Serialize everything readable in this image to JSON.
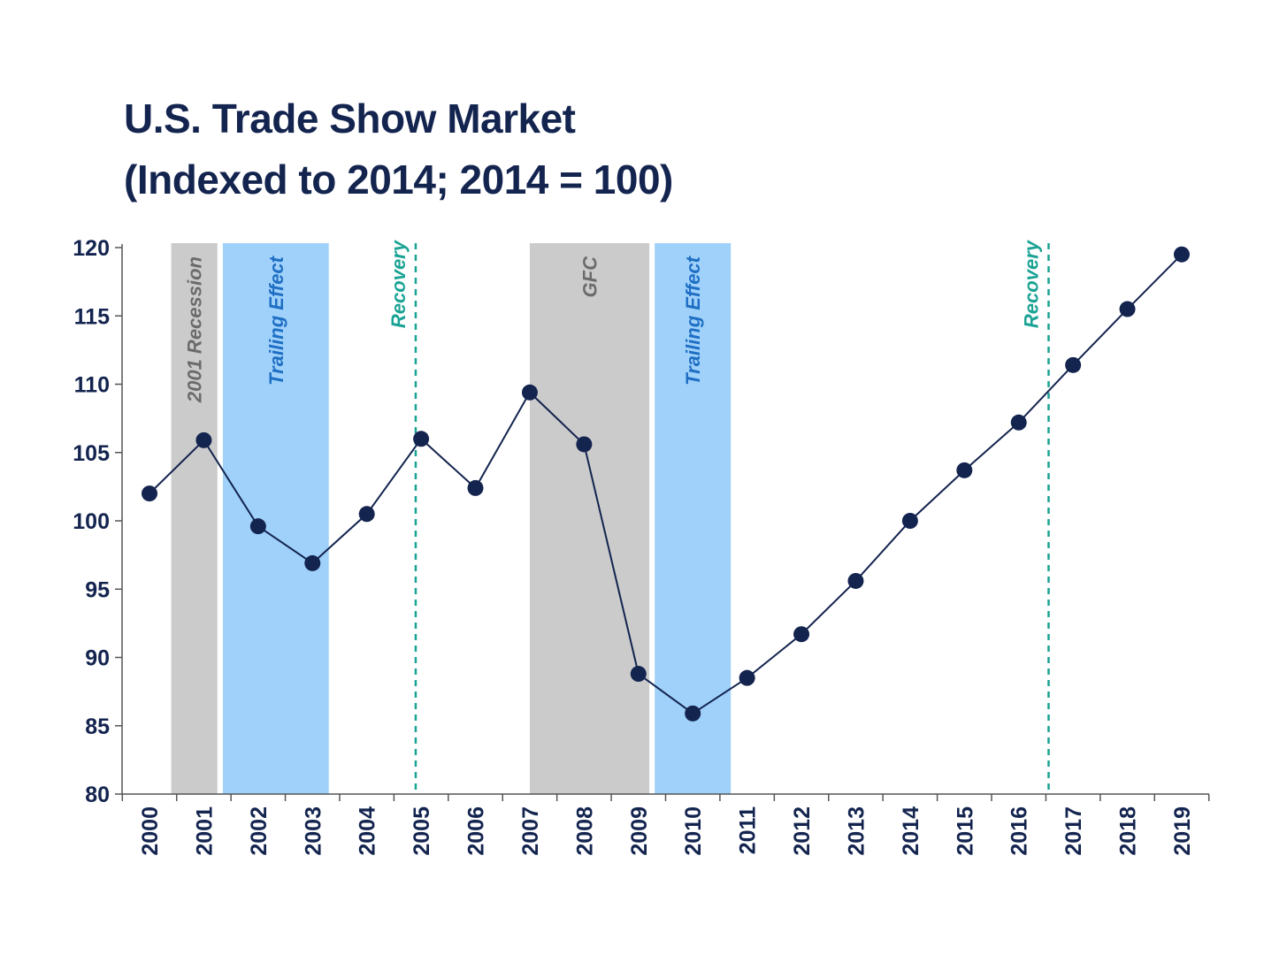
{
  "colors": {
    "title": "#13244f",
    "line": "#13244f",
    "axis": "#555555",
    "recession_band": "#cbcbcb",
    "recession_label": "#6b6b6b",
    "trailing_band": "#9fd1fa",
    "trailing_label": "#1f6fc4",
    "recovery": "#1aa394"
  },
  "chart_data": {
    "type": "line",
    "title": "U.S. Trade Show Market",
    "subtitle": "(Indexed to 2014; 2014 = 100)",
    "xlabel": "",
    "ylabel": "",
    "ylim": [
      80,
      120
    ],
    "yticks": [
      80,
      85,
      90,
      95,
      100,
      105,
      110,
      115,
      120
    ],
    "categories": [
      "2000",
      "2001",
      "2002",
      "2003",
      "2004",
      "2005",
      "2006",
      "2007",
      "2008",
      "2009",
      "2010",
      "2011",
      "2012",
      "2013",
      "2014",
      "2015",
      "2016",
      "2017",
      "2018",
      "2019"
    ],
    "values": [
      102.0,
      105.9,
      99.6,
      96.9,
      100.5,
      106.0,
      102.4,
      109.4,
      105.6,
      88.8,
      85.9,
      88.5,
      91.7,
      95.6,
      100.0,
      103.7,
      107.2,
      111.4,
      115.5,
      119.5
    ],
    "grid": false,
    "legend": "none",
    "bands": [
      {
        "label": "2001 Recession",
        "kind": "recession",
        "from": 2000.4,
        "to": 2001.25
      },
      {
        "label": "Trailing Effect",
        "kind": "trailing",
        "from": 2001.35,
        "to": 2003.3
      },
      {
        "label": "GFC",
        "kind": "recession",
        "from": 2007.0,
        "to": 2009.2
      },
      {
        "label": "Trailing Effect",
        "kind": "trailing",
        "from": 2009.3,
        "to": 2010.7
      }
    ],
    "markers": [
      {
        "label": "Recovery",
        "x": 2004.9
      },
      {
        "label": "Recovery",
        "x": 2016.55
      }
    ]
  }
}
